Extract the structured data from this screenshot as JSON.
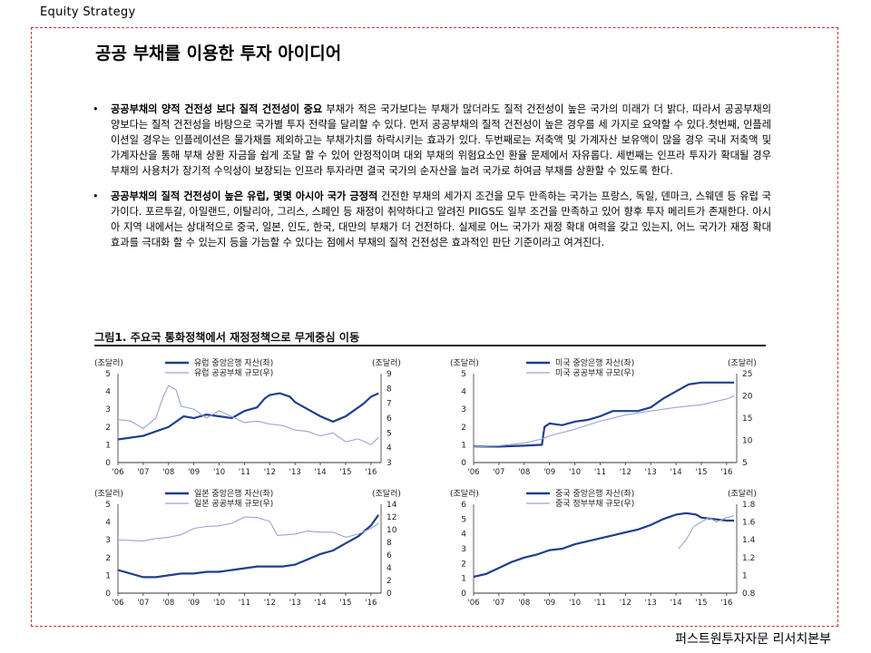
{
  "header": {
    "label": "Equity Strategy"
  },
  "page": {
    "title": "공공 부채를 이용한 투자 아이디어"
  },
  "bullets": [
    {
      "lead": "공공부채의 양적 건전성 보다 질적 건전성이 중요",
      "text": " 부채가 적은 국가보다는 부채가 많더라도 질적 건전성이 높은 국가의 미래가 더 밝다. 따라서 공공부채의 양보다는 질적 건전성을 바탕으로 국가별 투자 전략을 달리할 수 있다. 먼저 공공부채의 질적 건전성이 높은 경우를 세 가지로 요약할 수 있다.첫번째, 인플레이션일 경우는 인플레이션은 물가채를 제외하고는 부채가치를 하락시키는 효과가 있다. 두번째로는 저축액 및 가계자산 보유액이 많을 경우 국내 저축액 및 가계자산을 통해 부채 상환 자금을 쉽게 조달 할 수 있어 안정적이며 대외 부채의 위험요소인 환율 문제에서 자유롭다. 세번째는 인프라 투자가 확대될 경우 부채의 사용처가 장기적 수익성이 보장되는 인프라 투자라면 결국 국가의 순자산을 늘려 국가로 하여금 부채를 상환할 수 있도록 한다."
    },
    {
      "lead": "공공부채의 질적 건전성이 높은 유럽, 몇몇 아시아 국가 긍정적",
      "text": " 건전한 부채의 세가지 조건을 모두 만족하는 국가는 프랑스, 독일, 덴마크, 스웨덴 등 유럽 국가이다. 포르투갈, 아일랜드, 이탈리아, 그리스, 스페인 등 재정이 취약하다고 알려진 PIIGS도 일부 조건을 만족하고 있어 향후 투자 메리트가 존재한다. 아시아 지역 내에서는 상대적으로 중국, 일본, 인도, 한국, 대만의 부채가 더 건전하다. 실제로 어느 국가가 재정 확대 여력을 갖고 있는지, 어느 국가가 재정 확대 효과를 극대화 할 수 있는지 등을 가늠할 수 있다는 점에서 부채의 질적 건전성은 효과적인 판단 기준이라고 여겨진다."
    }
  ],
  "figure": {
    "title": "그림1. 주요국 통화정책에서 재정정책으로 무게중심 이동"
  },
  "footer": {
    "label": "퍼스트원투자자문 리서치본부"
  },
  "colors": {
    "primary": "#1f3f8c",
    "secondary": "#9aa3d6"
  },
  "chart_data": [
    {
      "type": "line",
      "xlabel": "",
      "ylabel": "",
      "y_unit_left": "(조달러)",
      "y_unit_right": "(조달러)",
      "x": [
        "'06",
        "'07",
        "'08",
        "'09",
        "'10",
        "'11",
        "'12",
        "'13",
        "'14",
        "'15",
        "'16"
      ],
      "ylim_left": [
        0,
        5
      ],
      "ylim_right": [
        3,
        9
      ],
      "series": [
        {
          "name": "유럽 중앙은행 자산(좌)",
          "axis": "left",
          "points": [
            [
              0,
              1.3
            ],
            [
              1,
              1.5
            ],
            [
              2,
              2.0
            ],
            [
              2.6,
              2.6
            ],
            [
              3,
              2.5
            ],
            [
              3.5,
              2.7
            ],
            [
              4,
              2.6
            ],
            [
              4.5,
              2.5
            ],
            [
              5,
              2.9
            ],
            [
              5.5,
              3.1
            ],
            [
              5.8,
              3.6
            ],
            [
              6,
              3.8
            ],
            [
              6.4,
              3.9
            ],
            [
              6.8,
              3.7
            ],
            [
              7,
              3.4
            ],
            [
              7.5,
              3.0
            ],
            [
              8,
              2.6
            ],
            [
              8.5,
              2.3
            ],
            [
              9,
              2.6
            ],
            [
              9.3,
              2.9
            ],
            [
              9.7,
              3.3
            ],
            [
              10,
              3.7
            ],
            [
              10.3,
              3.9
            ]
          ]
        },
        {
          "name": "유럽 공공부채 규모(우)",
          "axis": "right",
          "points": [
            [
              0,
              5.9
            ],
            [
              0.5,
              5.8
            ],
            [
              1,
              5.3
            ],
            [
              1.5,
              6.0
            ],
            [
              1.8,
              7.5
            ],
            [
              2,
              8.2
            ],
            [
              2.3,
              7.9
            ],
            [
              2.5,
              6.8
            ],
            [
              3,
              6.6
            ],
            [
              3.5,
              6.0
            ],
            [
              4,
              6.5
            ],
            [
              4.5,
              6.1
            ],
            [
              5,
              5.7
            ],
            [
              5.5,
              5.8
            ],
            [
              6,
              5.6
            ],
            [
              6.5,
              5.5
            ],
            [
              7,
              5.2
            ],
            [
              7.5,
              5.1
            ],
            [
              8,
              4.8
            ],
            [
              8.5,
              5.0
            ],
            [
              9,
              4.4
            ],
            [
              9.5,
              4.6
            ],
            [
              10,
              4.2
            ],
            [
              10.3,
              4.7
            ]
          ]
        }
      ],
      "right_ticks": [
        3,
        4,
        5,
        6,
        7,
        8,
        9
      ],
      "left_ticks": [
        0,
        1,
        2,
        3,
        4,
        5
      ]
    },
    {
      "type": "line",
      "xlabel": "",
      "ylabel": "",
      "y_unit_left": "(조달러)",
      "y_unit_right": "(조달러)",
      "x": [
        "'06",
        "'07",
        "'08",
        "'09",
        "'10",
        "'11",
        "'12",
        "'13",
        "'14",
        "'15",
        "'16"
      ],
      "ylim_left": [
        0,
        5
      ],
      "ylim_right": [
        5,
        25
      ],
      "series": [
        {
          "name": "미국 중앙은행 자산(좌)",
          "axis": "left",
          "points": [
            [
              0,
              0.9
            ],
            [
              1,
              0.9
            ],
            [
              2,
              0.95
            ],
            [
              2.7,
              1.0
            ],
            [
              2.8,
              2.0
            ],
            [
              3,
              2.2
            ],
            [
              3.5,
              2.1
            ],
            [
              4,
              2.3
            ],
            [
              4.5,
              2.4
            ],
            [
              5,
              2.6
            ],
            [
              5.5,
              2.9
            ],
            [
              6,
              2.9
            ],
            [
              6.5,
              2.9
            ],
            [
              7,
              3.1
            ],
            [
              7.5,
              3.6
            ],
            [
              8,
              4.0
            ],
            [
              8.5,
              4.4
            ],
            [
              9,
              4.5
            ],
            [
              9.5,
              4.5
            ],
            [
              10,
              4.5
            ],
            [
              10.3,
              4.5
            ]
          ]
        },
        {
          "name": "미국 공공부채 규모(우)",
          "axis": "right",
          "points": [
            [
              0,
              8.5
            ],
            [
              1,
              8.8
            ],
            [
              2,
              9.4
            ],
            [
              2.7,
              10.3
            ],
            [
              3,
              11.0
            ],
            [
              4,
              12.5
            ],
            [
              5,
              14.3
            ],
            [
              6,
              15.7
            ],
            [
              7,
              16.6
            ],
            [
              8,
              17.4
            ],
            [
              9,
              18.0
            ],
            [
              10,
              19.3
            ],
            [
              10.3,
              20.0
            ]
          ]
        }
      ],
      "right_ticks": [
        5,
        10,
        15,
        20,
        25
      ],
      "left_ticks": [
        0,
        1,
        2,
        3,
        4,
        5
      ]
    },
    {
      "type": "line",
      "xlabel": "",
      "ylabel": "",
      "y_unit_left": "(조달러)",
      "y_unit_right": "(조달러)",
      "x": [
        "'06",
        "'07",
        "'08",
        "'09",
        "'10",
        "'11",
        "'12",
        "'13",
        "'14",
        "'15",
        "'16"
      ],
      "ylim_left": [
        0,
        5
      ],
      "ylim_right": [
        0,
        14
      ],
      "series": [
        {
          "name": "일본 중앙은행 자산(좌)",
          "axis": "left",
          "points": [
            [
              0,
              1.3
            ],
            [
              0.5,
              1.1
            ],
            [
              1,
              0.9
            ],
            [
              1.5,
              0.9
            ],
            [
              2,
              1.0
            ],
            [
              2.5,
              1.1
            ],
            [
              3,
              1.1
            ],
            [
              3.5,
              1.2
            ],
            [
              4,
              1.2
            ],
            [
              4.5,
              1.3
            ],
            [
              5,
              1.4
            ],
            [
              5.5,
              1.5
            ],
            [
              6,
              1.5
            ],
            [
              6.5,
              1.5
            ],
            [
              7,
              1.6
            ],
            [
              7.5,
              1.9
            ],
            [
              8,
              2.2
            ],
            [
              8.5,
              2.4
            ],
            [
              9,
              2.8
            ],
            [
              9.5,
              3.2
            ],
            [
              10,
              3.8
            ],
            [
              10.3,
              4.4
            ]
          ]
        },
        {
          "name": "일본 공공부채 규모(우)",
          "axis": "right",
          "points": [
            [
              0,
              8.4
            ],
            [
              0.5,
              8.3
            ],
            [
              1,
              8.2
            ],
            [
              1.5,
              8.6
            ],
            [
              2,
              8.8
            ],
            [
              2.5,
              9.2
            ],
            [
              3,
              10.2
            ],
            [
              3.5,
              10.5
            ],
            [
              4,
              10.6
            ],
            [
              4.5,
              11.0
            ],
            [
              5,
              12.0
            ],
            [
              5.5,
              11.9
            ],
            [
              6,
              11.3
            ],
            [
              6.3,
              9.1
            ],
            [
              7,
              9.3
            ],
            [
              7.5,
              9.8
            ],
            [
              8,
              9.6
            ],
            [
              8.5,
              9.6
            ],
            [
              9,
              8.8
            ],
            [
              9.5,
              9.3
            ],
            [
              10,
              10.2
            ],
            [
              10.3,
              11.0
            ]
          ]
        }
      ],
      "right_ticks": [
        0,
        2,
        4,
        6,
        8,
        10,
        12,
        14
      ],
      "left_ticks": [
        0,
        1,
        2,
        3,
        4,
        5
      ]
    },
    {
      "type": "line",
      "xlabel": "",
      "ylabel": "",
      "y_unit_left": "(조달러)",
      "y_unit_right": "(조달러)",
      "x": [
        "'06",
        "'07",
        "'08",
        "'09",
        "'10",
        "'11",
        "'12",
        "'13",
        "'14",
        "'15",
        "'16"
      ],
      "ylim_left": [
        0,
        6
      ],
      "ylim_right": [
        0.8,
        1.8
      ],
      "series": [
        {
          "name": "중국 중앙은행 자산(좌)",
          "axis": "left",
          "points": [
            [
              0,
              1.1
            ],
            [
              0.5,
              1.3
            ],
            [
              1,
              1.7
            ],
            [
              1.5,
              2.1
            ],
            [
              2,
              2.4
            ],
            [
              2.5,
              2.6
            ],
            [
              3,
              2.9
            ],
            [
              3.5,
              3.0
            ],
            [
              4,
              3.3
            ],
            [
              4.5,
              3.5
            ],
            [
              5,
              3.7
            ],
            [
              5.5,
              3.9
            ],
            [
              6,
              4.1
            ],
            [
              6.5,
              4.3
            ],
            [
              7,
              4.6
            ],
            [
              7.5,
              5.0
            ],
            [
              8,
              5.3
            ],
            [
              8.4,
              5.4
            ],
            [
              8.8,
              5.3
            ],
            [
              9,
              5.1
            ],
            [
              9.5,
              5.0
            ],
            [
              10,
              4.9
            ],
            [
              10.3,
              4.9
            ]
          ]
        },
        {
          "name": "중국 정부부채 규모(우)",
          "axis": "right",
          "points": [
            [
              8.1,
              1.3
            ],
            [
              8.4,
              1.4
            ],
            [
              8.7,
              1.55
            ],
            [
              9,
              1.6
            ],
            [
              9.3,
              1.65
            ],
            [
              9.6,
              1.6
            ],
            [
              10,
              1.65
            ],
            [
              10.3,
              1.67
            ]
          ]
        }
      ],
      "right_ticks": [
        0.8,
        1,
        1.2,
        1.4,
        1.6,
        1.8
      ],
      "left_ticks": [
        0,
        1,
        2,
        3,
        4,
        5,
        6
      ]
    }
  ]
}
